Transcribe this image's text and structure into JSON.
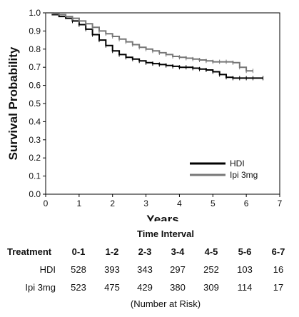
{
  "chart_data": {
    "type": "line",
    "xlabel": "Years",
    "ylabel": "Survival Probability",
    "xlim": [
      0,
      7
    ],
    "ylim": [
      0,
      1.0
    ],
    "x_ticks": [
      "0",
      "1",
      "2",
      "3",
      "4",
      "5",
      "6",
      "7"
    ],
    "y_ticks": [
      "0.0",
      "0.1",
      "0.2",
      "0.3",
      "0.4",
      "0.5",
      "0.6",
      "0.7",
      "0.8",
      "0.9",
      "1.0"
    ],
    "grid": false,
    "legend_position": "lower-right",
    "series": [
      {
        "name": "HDI",
        "color": "#000000",
        "x": [
          0,
          0.2,
          0.4,
          0.6,
          0.8,
          1.0,
          1.2,
          1.4,
          1.6,
          1.8,
          2.0,
          2.2,
          2.4,
          2.6,
          2.8,
          3.0,
          3.2,
          3.4,
          3.6,
          3.8,
          4.0,
          4.2,
          4.4,
          4.6,
          4.8,
          5.0,
          5.2,
          5.4,
          5.6,
          5.8,
          6.0,
          6.2,
          6.5
        ],
        "y": [
          1.0,
          0.99,
          0.98,
          0.97,
          0.955,
          0.935,
          0.91,
          0.88,
          0.85,
          0.82,
          0.79,
          0.77,
          0.755,
          0.745,
          0.735,
          0.725,
          0.72,
          0.715,
          0.71,
          0.705,
          0.7,
          0.7,
          0.695,
          0.69,
          0.685,
          0.675,
          0.66,
          0.645,
          0.64,
          0.64,
          0.64,
          0.64,
          0.64
        ]
      },
      {
        "name": "Ipi 3mg",
        "color": "#777777",
        "x": [
          0,
          0.2,
          0.4,
          0.6,
          0.8,
          1.0,
          1.2,
          1.4,
          1.6,
          1.8,
          2.0,
          2.2,
          2.4,
          2.6,
          2.8,
          3.0,
          3.2,
          3.4,
          3.6,
          3.8,
          4.0,
          4.2,
          4.4,
          4.6,
          4.8,
          5.0,
          5.2,
          5.4,
          5.6,
          5.8,
          6.0,
          6.2
        ],
        "y": [
          1.0,
          0.995,
          0.99,
          0.98,
          0.97,
          0.955,
          0.94,
          0.92,
          0.9,
          0.885,
          0.87,
          0.855,
          0.84,
          0.825,
          0.81,
          0.8,
          0.79,
          0.78,
          0.77,
          0.76,
          0.755,
          0.75,
          0.745,
          0.74,
          0.735,
          0.73,
          0.73,
          0.73,
          0.725,
          0.7,
          0.68,
          0.68
        ]
      }
    ]
  },
  "risk_table": {
    "title": "Time Interval",
    "treatment_label": "Treatment",
    "intervals": [
      "0-1",
      "1-2",
      "2-3",
      "3-4",
      "4-5",
      "5-6",
      "6-7"
    ],
    "rows": [
      {
        "name": "HDI",
        "values": [
          "528",
          "393",
          "343",
          "297",
          "252",
          "103",
          "16"
        ]
      },
      {
        "name": "Ipi 3mg",
        "values": [
          "523",
          "475",
          "429",
          "380",
          "309",
          "114",
          "17"
        ]
      }
    ],
    "footer": "(Number at Risk)"
  }
}
